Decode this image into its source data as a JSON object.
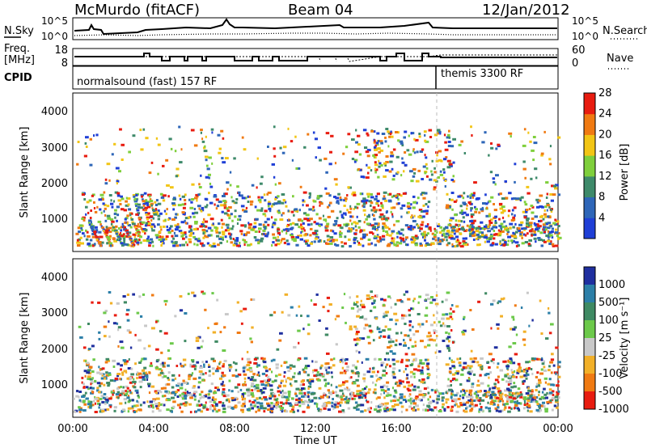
{
  "header": {
    "station": "McMurdo (fitACF)",
    "beam": "Beam 04",
    "date": "12/Jan/2012"
  },
  "top_panels": {
    "nsky_label": "N.Sky",
    "nsky_ticks": [
      "10^5",
      "10^0"
    ],
    "nsearch_label": "N.Search",
    "freq_label_1": "Freq.",
    "freq_label_2": "[MHz]",
    "freq_ticks": [
      "18",
      "8"
    ],
    "nave_label": "Nave",
    "nave_ticks": [
      "60",
      "0"
    ],
    "cpid_label": "CPID",
    "cpid_segments": [
      "normalsound (fast) 157 RF",
      "themis 3300 RF"
    ]
  },
  "chart_data": [
    {
      "type": "heatmap",
      "name": "power",
      "ylabel": "Slant Range [km]",
      "y_ticks": [
        "1000",
        "2000",
        "3000",
        "4000"
      ],
      "ylim": [
        200,
        4600
      ],
      "xlim": [
        0,
        24
      ],
      "colorbar_label": "Power [dB]",
      "colorbar_ticks": [
        "4",
        "8",
        "12",
        "16",
        "20",
        "24",
        "28"
      ],
      "colors": [
        "#1f3fd6",
        "#2e66b8",
        "#3e8a6a",
        "#7fcf3c",
        "#f2c515",
        "#f07a12",
        "#e81c10"
      ]
    },
    {
      "type": "heatmap",
      "name": "velocity",
      "ylabel": "Slant Range [km]",
      "y_ticks": [
        "1000",
        "2000",
        "3000",
        "4000"
      ],
      "ylim": [
        200,
        4600
      ],
      "xlim": [
        0,
        24
      ],
      "xlabel": "Time UT",
      "x_ticks": [
        "00:00",
        "04:00",
        "08:00",
        "12:00",
        "16:00",
        "20:00",
        "00:00"
      ],
      "colorbar_label": "Velocity [m s⁻¹]",
      "colorbar_ticks": [
        "1000",
        "500",
        "100",
        "25",
        "-25",
        "-100",
        "-500",
        "-1000"
      ],
      "colors": [
        "#1f2f9f",
        "#2c7fa8",
        "#3f8a63",
        "#6cc94a",
        "#c8c8c8",
        "#f2b028",
        "#f07a12",
        "#e81c10"
      ]
    }
  ]
}
